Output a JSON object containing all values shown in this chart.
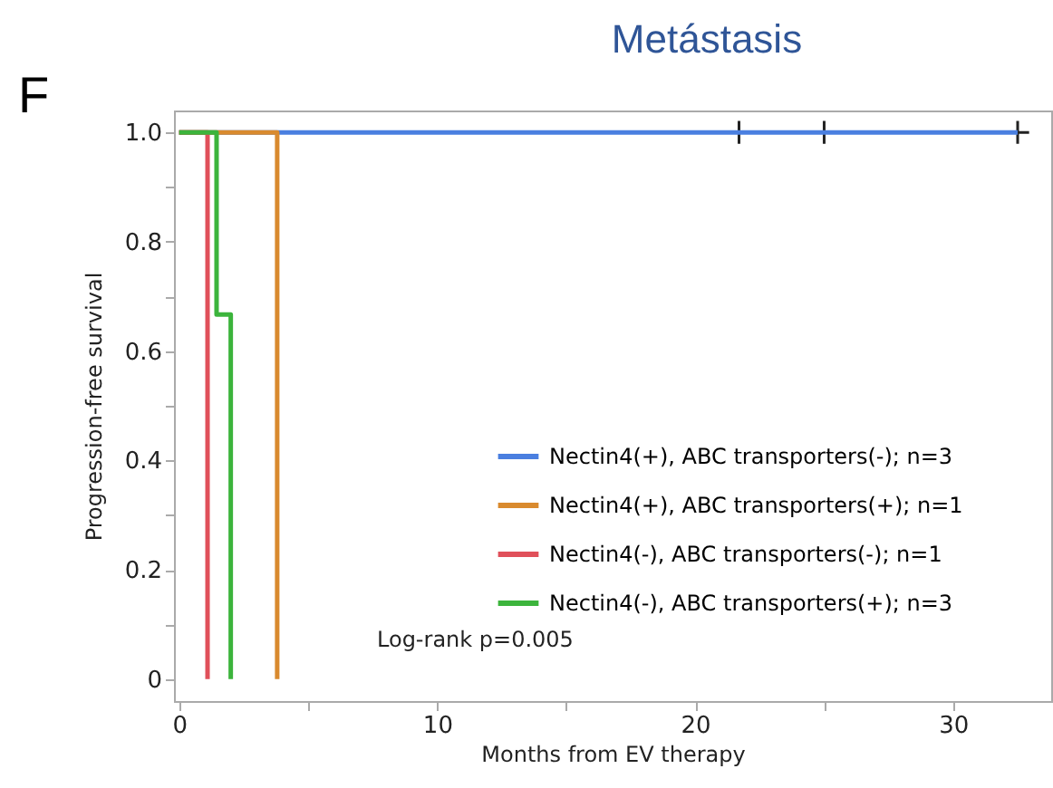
{
  "chart_data": {
    "type": "step",
    "title": "Metástasis",
    "xlabel": "Months from EV therapy",
    "ylabel": "Progression-free survival",
    "annotations": [
      "F",
      "Log-rank p=0.005"
    ],
    "xlim": [
      -0.2,
      33.8
    ],
    "xticks": [
      0,
      {
        "value": 5,
        "label": null
      },
      10,
      {
        "value": 15,
        "label": null
      },
      20,
      {
        "value": 25,
        "label": null
      },
      30
    ],
    "ylim": [
      -0.04,
      1.04
    ],
    "yticks": [
      0,
      {
        "value": 0.1,
        "label": null
      },
      0.2,
      {
        "value": 0.3,
        "label": null
      },
      0.4,
      {
        "value": 0.5,
        "label": null
      },
      0.6,
      {
        "value": 0.7,
        "label": null
      },
      0.8,
      {
        "value": 0.9,
        "label": null
      },
      {
        "value": 1,
        "label": "1.0"
      }
    ],
    "grid": false,
    "legend": "bottom right",
    "series": [
      {
        "name": "Nectin4(+), ABC transporters(-); n=3",
        "color": "#4a7fe0",
        "x": [
          0,
          32.5
        ],
        "values": [
          1,
          1
        ]
      },
      {
        "name": "Nectin4(+), ABC transporters(+); n=1",
        "color": "#d98a2e",
        "x": [
          0,
          3.8
        ],
        "values": [
          1,
          0
        ]
      },
      {
        "name": "Nectin4(-), ABC transporters(-); n=1",
        "color": "#e0505a",
        "x": [
          0,
          1.1
        ],
        "values": [
          1,
          0
        ]
      },
      {
        "name": "Nectin4(-), ABC transporters(+); n=3",
        "color": "#3cb43c",
        "x": [
          0,
          1.45,
          2.0
        ],
        "values": [
          1,
          0.667,
          0
        ]
      },
      {
        "type": "scatter",
        "marker": "cross",
        "color": "#222222",
        "x": [
          21.7,
          25,
          32.5
        ],
        "values": [
          1,
          1,
          1
        ]
      }
    ]
  }
}
